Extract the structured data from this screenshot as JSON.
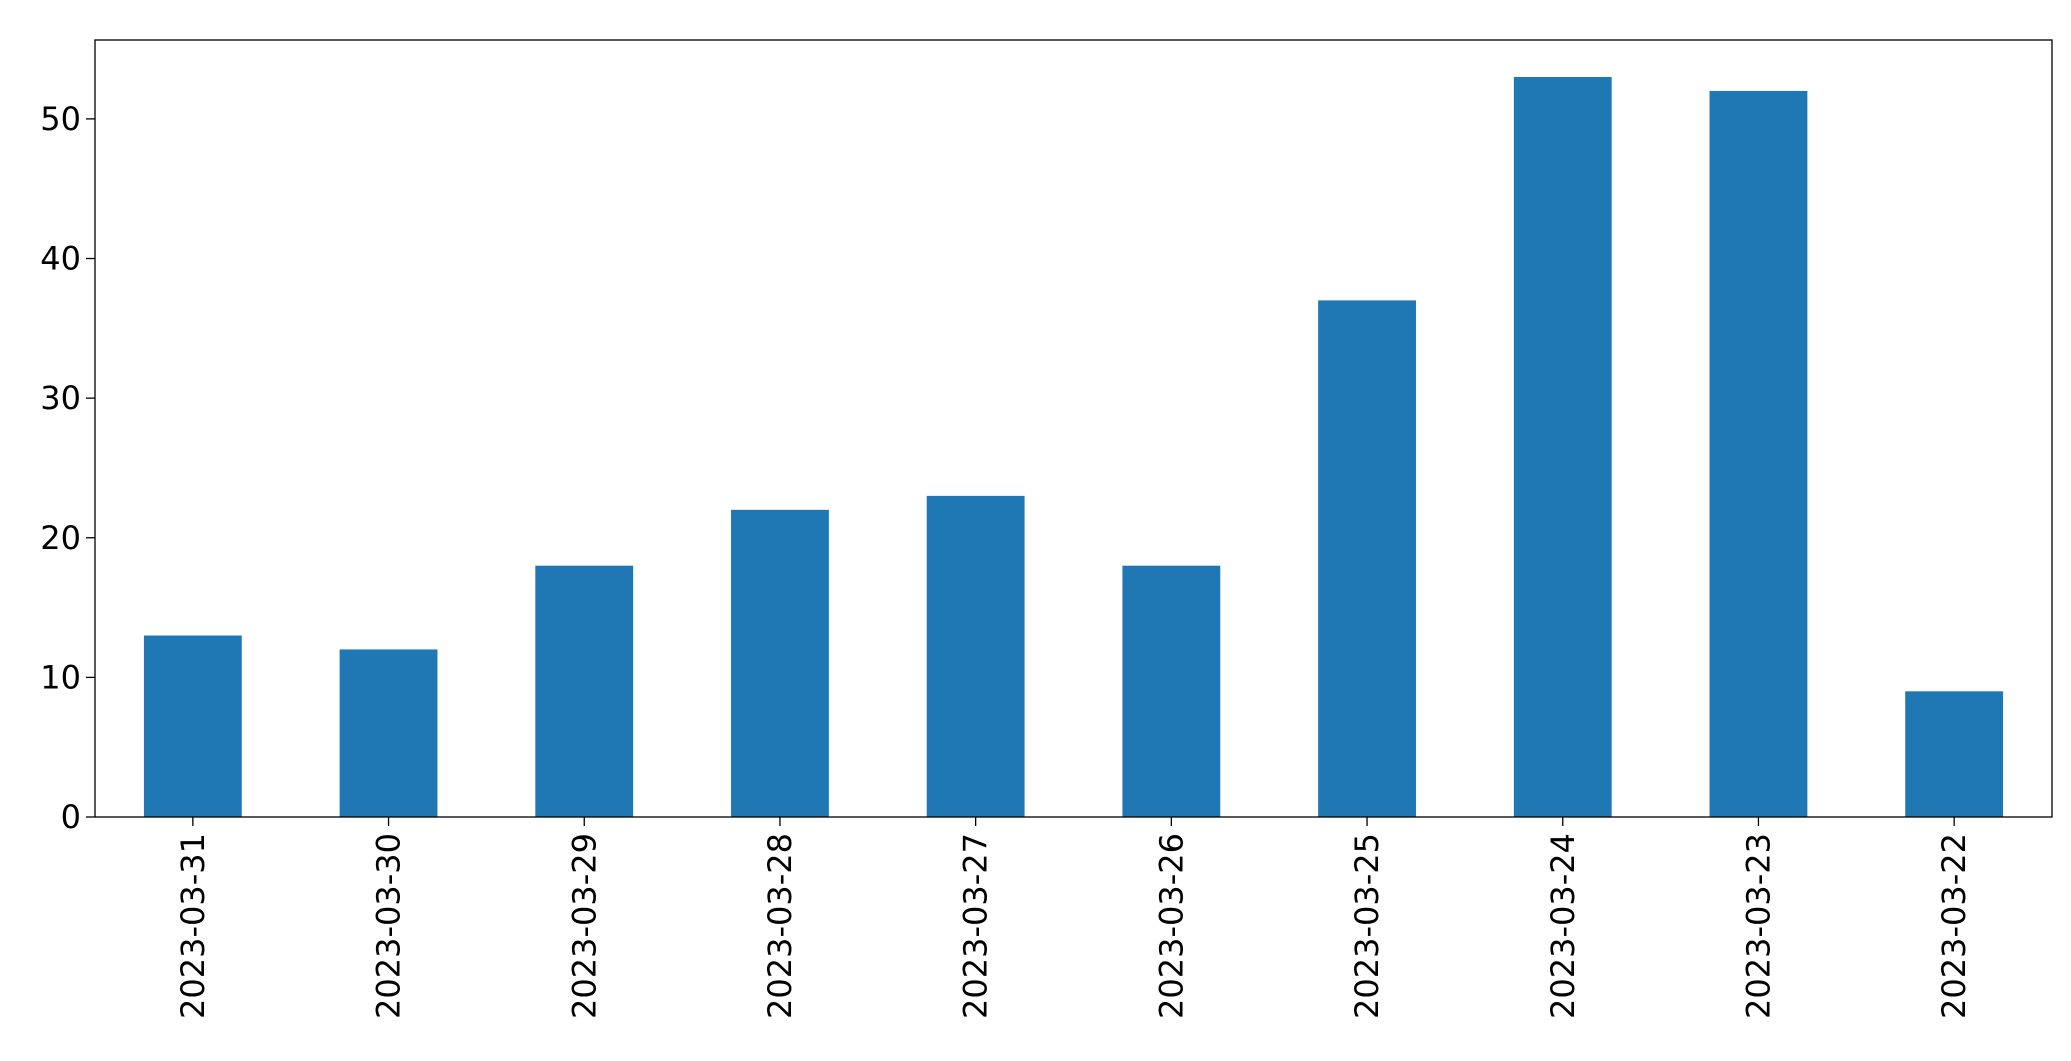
{
  "chart_data": {
    "type": "bar",
    "categories": [
      "2023-03-31",
      "2023-03-30",
      "2023-03-29",
      "2023-03-28",
      "2023-03-27",
      "2023-03-26",
      "2023-03-25",
      "2023-03-24",
      "2023-03-23",
      "2023-03-22"
    ],
    "values": [
      13,
      12,
      18,
      22,
      23,
      18,
      37,
      53,
      52,
      9
    ],
    "color": "#1f77b4",
    "ylim": [
      0,
      55.65
    ],
    "yticks": [
      0,
      10,
      20,
      30,
      40,
      50
    ],
    "grid": false
  }
}
